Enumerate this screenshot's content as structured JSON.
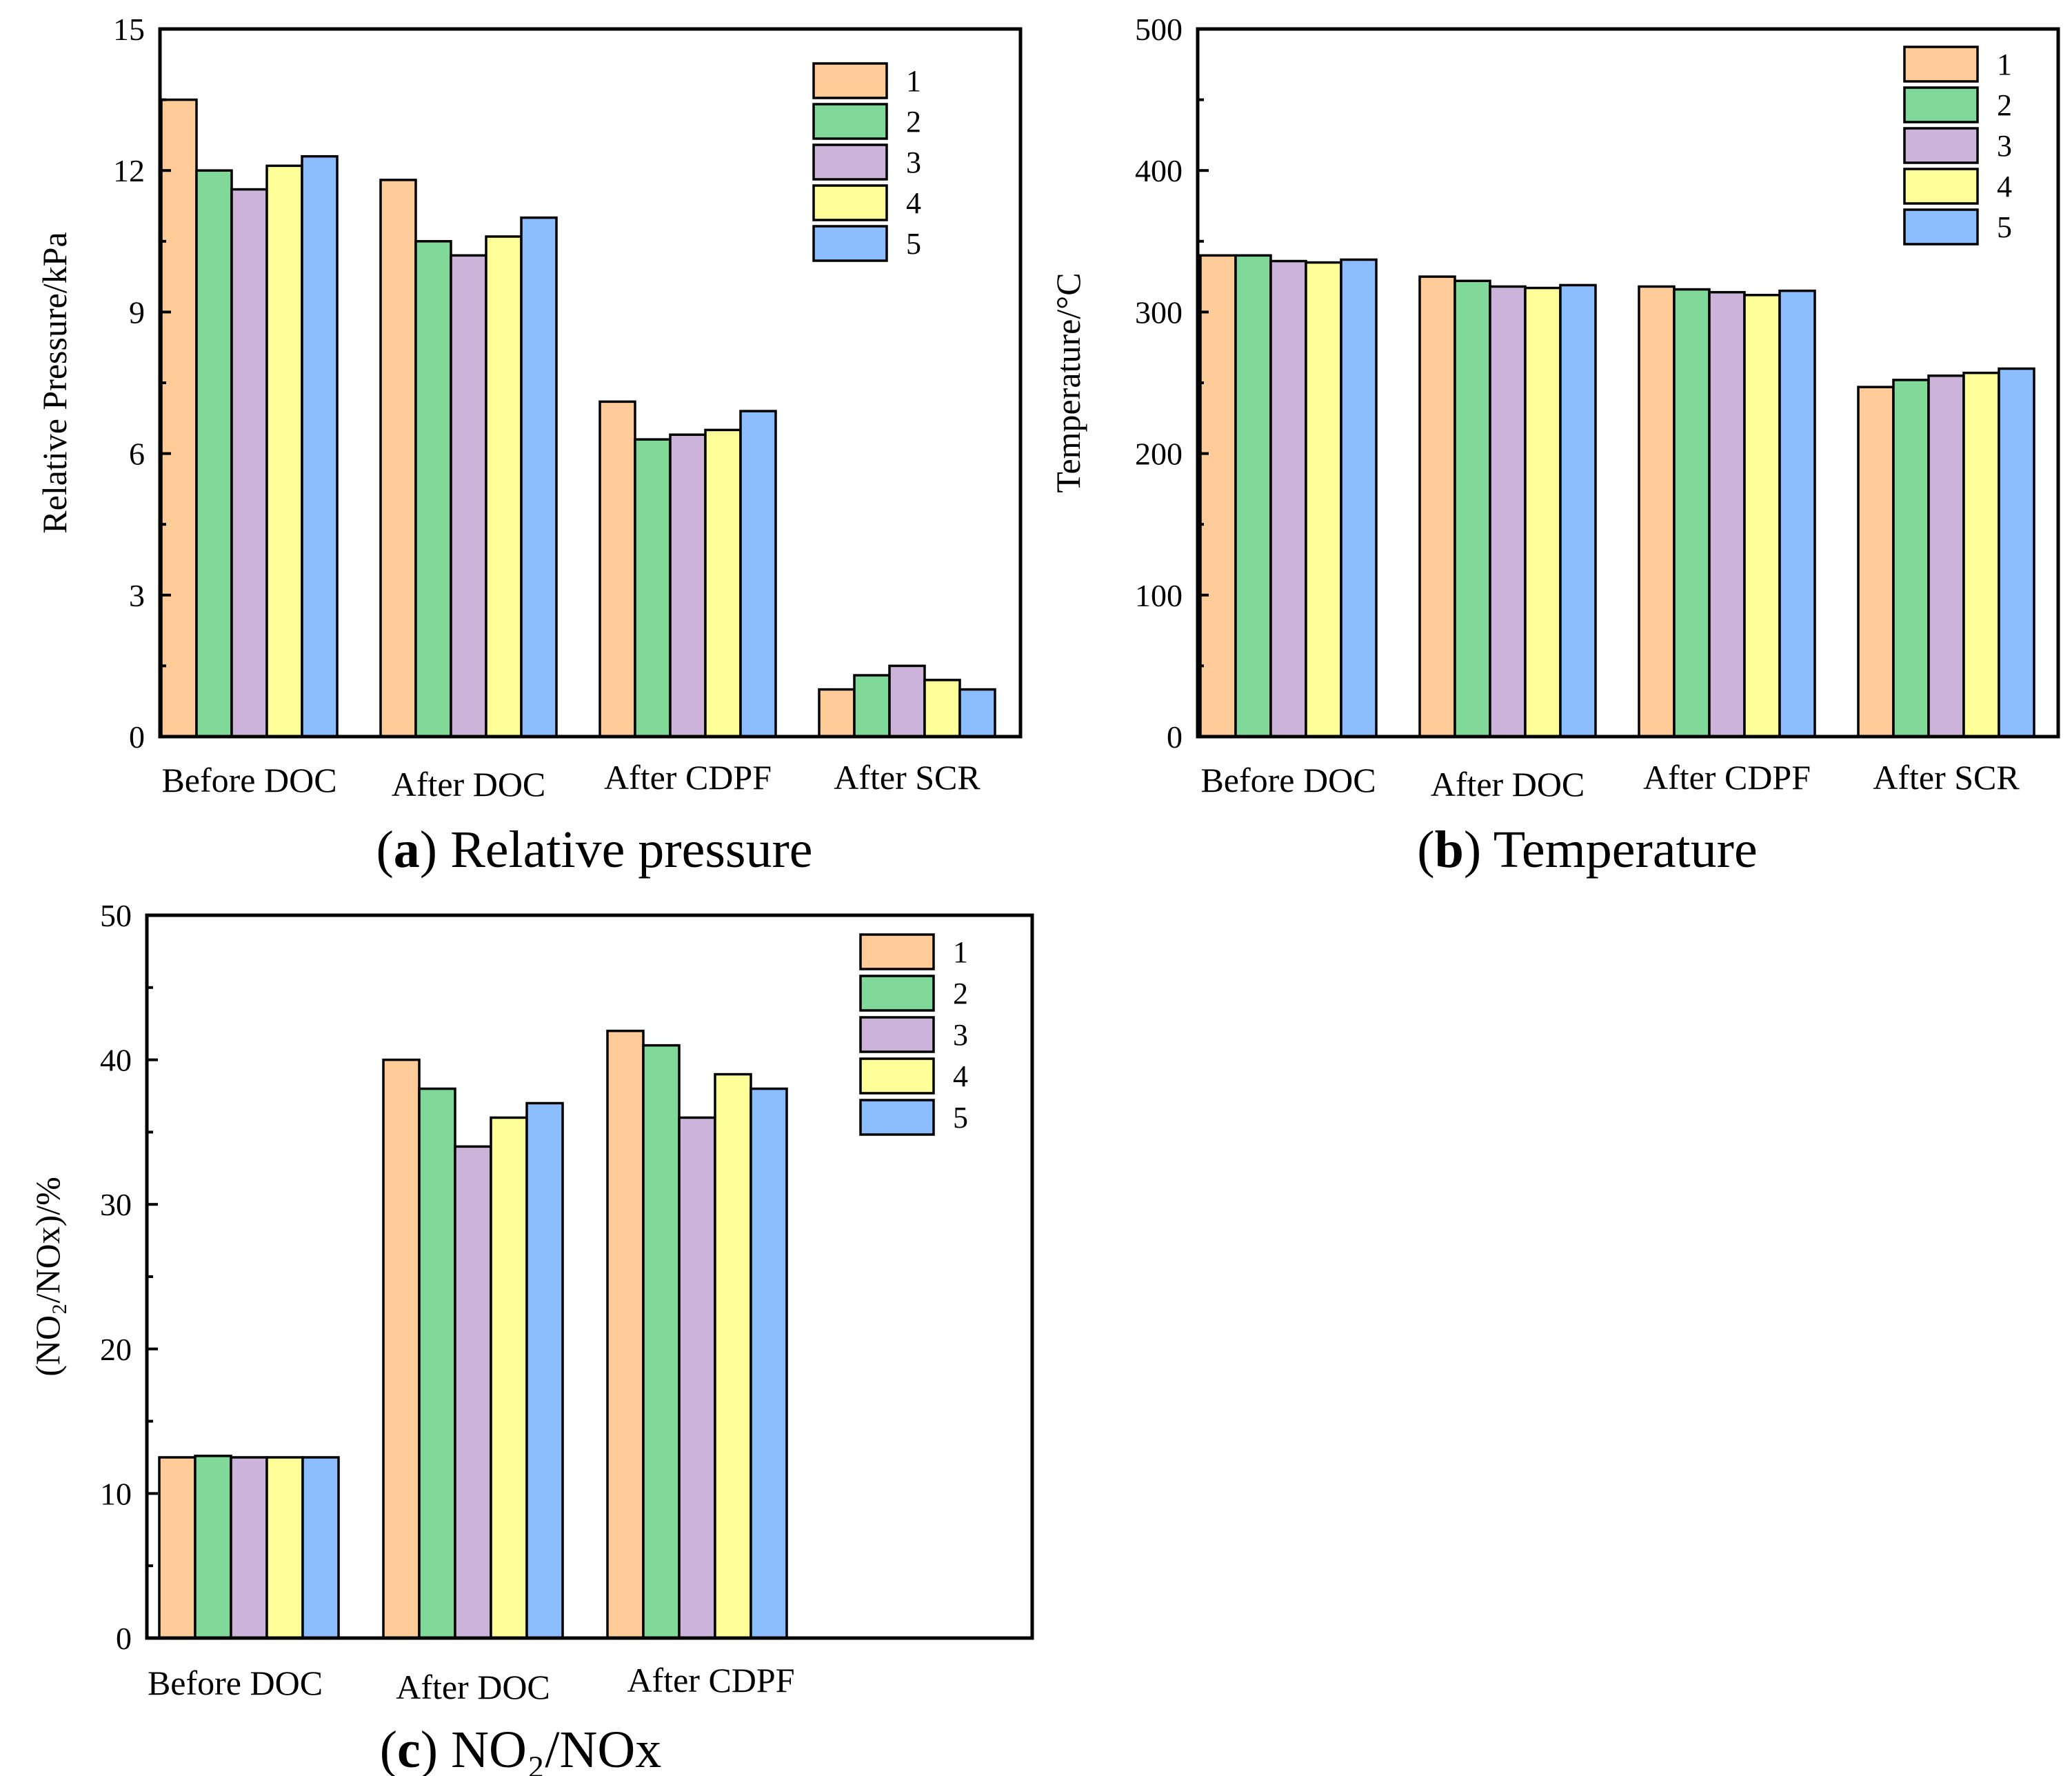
{
  "series_colors": [
    "#ffcc99",
    "#80d998",
    "#ccb3d9",
    "#ffff99",
    "#8cbdff"
  ],
  "chart_data": [
    {
      "id": "a",
      "type": "bar",
      "caption_letter": "a",
      "caption_text": "Relative pressure",
      "ylabel": "Relative Pressure/kPa",
      "ylim": [
        0,
        15
      ],
      "yticks": [
        0,
        3,
        6,
        9,
        12,
        15
      ],
      "categories": [
        "Before DOC",
        "After DOC",
        "After CDPF",
        "After SCR"
      ],
      "legend_position": "top-right",
      "series": [
        {
          "name": "1",
          "values": [
            13.5,
            11.8,
            7.1,
            1.0
          ]
        },
        {
          "name": "2",
          "values": [
            12.0,
            10.5,
            6.3,
            1.3
          ]
        },
        {
          "name": "3",
          "values": [
            11.6,
            10.2,
            6.4,
            1.5
          ]
        },
        {
          "name": "4",
          "values": [
            12.1,
            10.6,
            6.5,
            1.2
          ]
        },
        {
          "name": "5",
          "values": [
            12.3,
            11.0,
            6.9,
            1.0
          ]
        }
      ]
    },
    {
      "id": "b",
      "type": "bar",
      "caption_letter": "b",
      "caption_text": "Temperature",
      "ylabel": "Temperature/°C",
      "ylim": [
        0,
        500
      ],
      "yticks": [
        0,
        100,
        200,
        300,
        400,
        500
      ],
      "categories": [
        "Before DOC",
        "After DOC",
        "After CDPF",
        "After SCR"
      ],
      "legend_position": "top-right",
      "series": [
        {
          "name": "1",
          "values": [
            340,
            325,
            318,
            247
          ]
        },
        {
          "name": "2",
          "values": [
            340,
            322,
            316,
            252
          ]
        },
        {
          "name": "3",
          "values": [
            336,
            318,
            314,
            255
          ]
        },
        {
          "name": "4",
          "values": [
            335,
            317,
            312,
            257
          ]
        },
        {
          "name": "5",
          "values": [
            337,
            319,
            315,
            260
          ]
        }
      ]
    },
    {
      "id": "c",
      "type": "bar",
      "caption_letter": "c",
      "caption_text": "NO₂/NOx",
      "ylabel": "(NO₂/NOx)/%",
      "ylim": [
        0,
        50
      ],
      "yticks": [
        0,
        10,
        20,
        30,
        40,
        50
      ],
      "categories": [
        "Before DOC",
        "After DOC",
        "After CDPF"
      ],
      "legend_position": "top-right",
      "series": [
        {
          "name": "1",
          "values": [
            12.5,
            40,
            42
          ]
        },
        {
          "name": "2",
          "values": [
            12.6,
            38,
            41
          ]
        },
        {
          "name": "3",
          "values": [
            12.5,
            34,
            36
          ]
        },
        {
          "name": "4",
          "values": [
            12.5,
            36,
            39
          ]
        },
        {
          "name": "5",
          "values": [
            12.5,
            37,
            38
          ]
        }
      ]
    }
  ]
}
